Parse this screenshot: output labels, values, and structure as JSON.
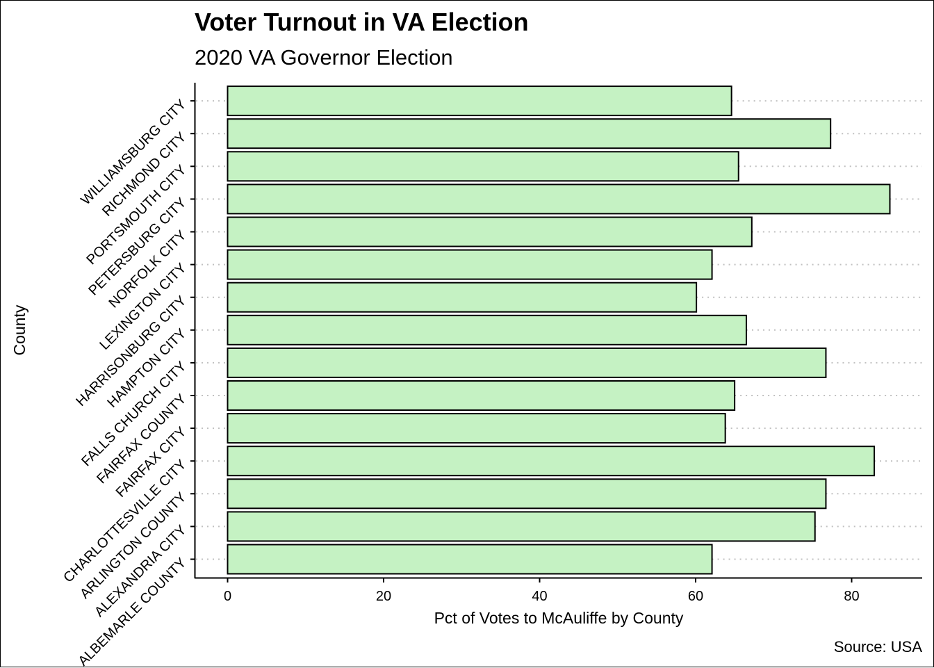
{
  "chart_data": {
    "type": "bar",
    "orientation": "horizontal",
    "title": "Voter Turnout in VA Election",
    "subtitle": "2020 VA Governor Election",
    "xlabel": "Pct of Votes to McAuliffe by County",
    "ylabel": "County",
    "caption": "Source: USA",
    "xlim": [
      0,
      88
    ],
    "xticks": [
      0,
      20,
      40,
      60,
      80
    ],
    "grid": "dotted horizontal",
    "bar_fill": "#c5f2c3",
    "bar_stroke": "#000000",
    "categories": [
      "ALBEMARLE COUNTY",
      "ALEXANDRIA CITY",
      "ARLINGTON COUNTY",
      "CHARLOTTESVILLE CITY",
      "FAIRFAX CITY",
      "FAIRFAX COUNTY",
      "FALLS CHURCH CITY",
      "HAMPTON CITY",
      "HARRISONBURG CITY",
      "LEXINGTON CITY",
      "NORFOLK CITY",
      "PETERSBURG CITY",
      "PORTSMOUTH CITY",
      "RICHMOND CITY",
      "WILLIAMSBURG CITY"
    ],
    "values": [
      62.1,
      75.3,
      76.7,
      82.9,
      63.8,
      65.0,
      76.7,
      66.5,
      60.1,
      62.1,
      67.2,
      84.9,
      65.5,
      77.3,
      64.6
    ]
  }
}
